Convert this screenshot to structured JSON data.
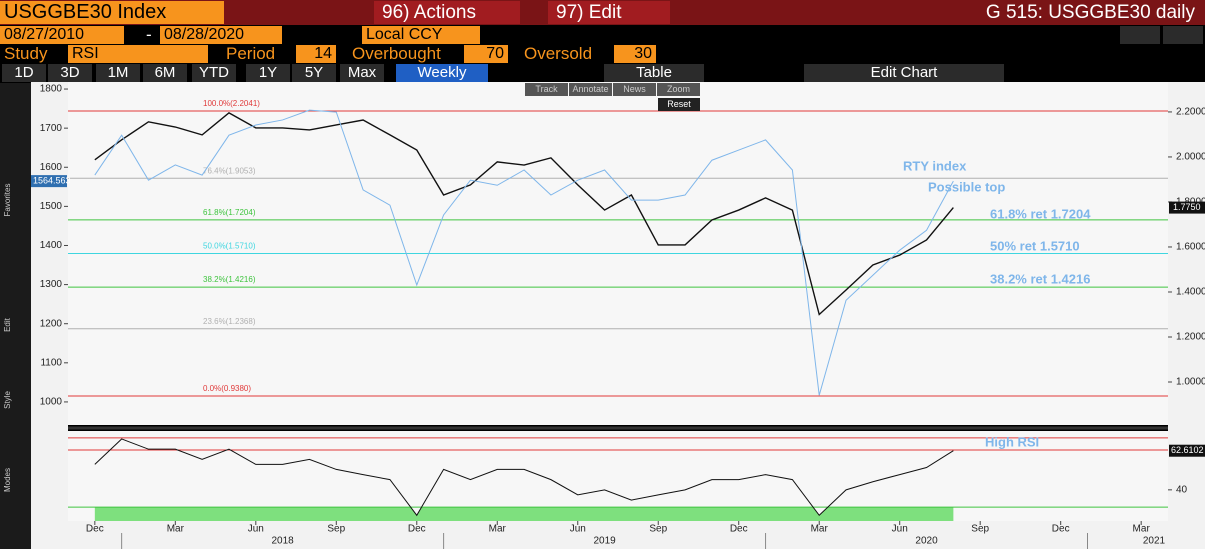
{
  "ui": {
    "security": "USGGBE30 Index",
    "menu": [
      "96) Actions",
      "97) Edit"
    ],
    "window_title": "G 515: USGGBE30 daily",
    "start_date": "08/27/2010",
    "date_separator": "-",
    "end_date": "08/28/2020",
    "currency": "Local CCY",
    "study_label": "Study",
    "study": "RSI",
    "period_label": "Period",
    "period": "14",
    "overbought_label": "Overbought",
    "overbought": "70",
    "oversold_label": "Oversold",
    "oversold": "30",
    "ranges": [
      "1D",
      "3D",
      "1M",
      "6M",
      "YTD",
      "1Y",
      "5Y",
      "Max"
    ],
    "frequency": "Weekly",
    "table": "Table",
    "edit_chart": "Edit Chart",
    "tools": [
      "Track",
      "Annotate",
      "News",
      "Zoom"
    ],
    "reset": "Reset",
    "side_labels": [
      "Favorites",
      "Edit",
      "Style",
      "Modes"
    ]
  },
  "chart_data": [
    {
      "type": "line",
      "x": [
        "2017-12",
        "2018-01",
        "2018-02",
        "2018-03",
        "2018-04",
        "2018-05",
        "2018-06",
        "2018-07",
        "2018-08",
        "2018-09",
        "2018-10",
        "2018-11",
        "2018-12",
        "2019-01",
        "2019-02",
        "2019-03",
        "2019-04",
        "2019-05",
        "2019-06",
        "2019-07",
        "2019-08",
        "2019-09",
        "2019-10",
        "2019-11",
        "2019-12",
        "2020-01",
        "2020-02",
        "2020-03",
        "2020-04",
        "2020-05",
        "2020-06",
        "2020-07",
        "2020-08"
      ],
      "xlim": [
        "2017-11",
        "2021-04"
      ],
      "xticks": [
        {
          "value": "2017-12",
          "label": "Dec"
        },
        {
          "value": "2018-03",
          "label": "Mar"
        },
        {
          "value": "2018-06",
          "label": "Jun"
        },
        {
          "value": "2018-09",
          "label": "Sep"
        },
        {
          "value": "2018-12",
          "label": "Dec"
        },
        {
          "value": "2019-03",
          "label": "Mar"
        },
        {
          "value": "2019-06",
          "label": "Jun"
        },
        {
          "value": "2019-09",
          "label": "Sep"
        },
        {
          "value": "2019-12",
          "label": "Dec"
        },
        {
          "value": "2020-03",
          "label": "Mar"
        },
        {
          "value": "2020-06",
          "label": "Jun"
        },
        {
          "value": "2020-09",
          "label": "Sep"
        },
        {
          "value": "2020-12",
          "label": "Dec"
        },
        {
          "value": "2021-03",
          "label": "Mar"
        }
      ],
      "years": [
        "2018",
        "2019",
        "2020",
        "2021"
      ],
      "ylim": [
        941,
        1818
      ],
      "yticks": [
        1000,
        1100,
        1200,
        1300,
        1400,
        1500,
        1600,
        1700,
        1800
      ],
      "y2lim": [
        0.809,
        2.333
      ],
      "y2ticks": [
        {
          "value": 1.0,
          "label": "1.0000"
        },
        {
          "value": 1.2,
          "label": "1.2000"
        },
        {
          "value": 1.4,
          "label": "1.4000"
        },
        {
          "value": 1.6,
          "label": "1.6000"
        },
        {
          "value": 1.8,
          "label": "1.8000"
        },
        {
          "value": 2.0,
          "label": "2.0000"
        },
        {
          "value": 2.2,
          "label": "2.2000"
        }
      ],
      "series": [
        {
          "name": "USGGBE30 Index",
          "color": "#111111",
          "axis": "y2",
          "last_label": "1.7750",
          "values": [
            1.987,
            2.076,
            2.156,
            2.133,
            2.098,
            2.196,
            2.129,
            2.129,
            2.12,
            2.142,
            2.164,
            2.098,
            2.031,
            1.831,
            1.876,
            1.978,
            1.964,
            1.996,
            1.876,
            1.764,
            1.831,
            1.609,
            1.609,
            1.72,
            1.764,
            1.818,
            1.764,
            1.3,
            1.409,
            1.52,
            1.564,
            1.631,
            1.775
          ]
        },
        {
          "name": "RTY index",
          "color": "#7fb6ea",
          "last_label": "1564.563",
          "values": [
            1580,
            1682,
            1567,
            1606,
            1580,
            1682,
            1708,
            1721,
            1746,
            1741,
            1542,
            1503,
            1299,
            1478,
            1567,
            1554,
            1593,
            1529,
            1567,
            1593,
            1516,
            1516,
            1529,
            1618,
            1644,
            1670,
            1593,
            1017,
            1260,
            1324,
            1388,
            1439,
            1564.563
          ]
        }
      ],
      "levels": [
        {
          "value": 2.2041,
          "label": "100.0%(2.2041)",
          "color": "#e03a3a"
        },
        {
          "value": 1.9053,
          "label": "76.4%(1.9053)",
          "color": "#b0b0b0"
        },
        {
          "value": 1.7204,
          "label": "61.8%(1.7204)",
          "color": "#3fc43f"
        },
        {
          "value": 1.571,
          "label": "50.0%(1.5710)",
          "color": "#3fd6e0"
        },
        {
          "value": 1.4216,
          "label": "38.2%(1.4216)",
          "color": "#3fc43f"
        },
        {
          "value": 1.2368,
          "label": "23.6%(1.2368)",
          "color": "#b0b0b0"
        },
        {
          "value": 0.938,
          "label": "0.0%(0.9380)",
          "color": "#e03a3a"
        }
      ],
      "annotations": [
        "Possible top",
        "61.8% ret 1.7204",
        "50% ret 1.5710",
        "38.2% ret 1.4216"
      ]
    },
    {
      "type": "line",
      "ylim": [
        22,
        74
      ],
      "yticks": [
        40
      ],
      "series": [
        {
          "color": "#111111",
          "last_label": "62.6102",
          "values": [
            54.7,
            69.4,
            63.5,
            63.5,
            57.6,
            63.5,
            54.7,
            54.7,
            57.6,
            51.8,
            48.8,
            45.9,
            25.3,
            51.8,
            45.9,
            51.8,
            51.8,
            45.9,
            37.1,
            40,
            34.1,
            37.1,
            40,
            45.9,
            45.9,
            48.8,
            45.9,
            25.3,
            40,
            44.7,
            48.8,
            52.9,
            62.6102
          ]
        }
      ],
      "levels": [
        {
          "value": 70,
          "color": "#e03a3a"
        },
        {
          "value": 30,
          "color": "#3fc43f"
        }
      ],
      "annotations": [
        {
          "text": "High RSI",
          "value": 63
        }
      ]
    }
  ]
}
